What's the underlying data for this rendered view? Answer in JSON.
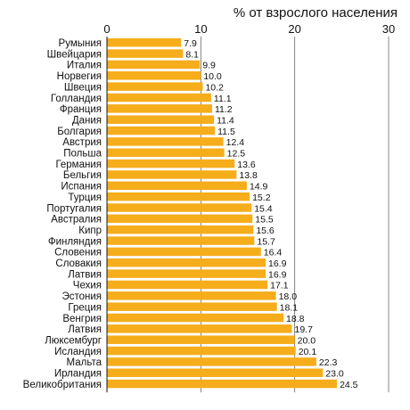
{
  "chart_data": {
    "type": "bar",
    "orientation": "horizontal",
    "title": "",
    "xlabel": "% от взрослого населения",
    "ylabel": "",
    "xlim": [
      0,
      30
    ],
    "xticks": [
      0,
      10,
      20,
      30
    ],
    "grid": true,
    "bar_color": "#f6ad1b",
    "categories": [
      "Румыния",
      "Швейцария",
      "Италия",
      "Норвегия",
      "Швеция",
      "Голландия",
      "Франция",
      "Дания",
      "Болгария",
      "Австрия",
      "Польша",
      "Германия",
      "Бельгия",
      "Испания",
      "Турция",
      "Португалия",
      "Австралия",
      "Кипр",
      "Финляндия",
      "Словения",
      "Словакия",
      "Латвия",
      "Чехия",
      "Эстония",
      "Греция",
      "Венгрия",
      "Латвия",
      "Люксембург",
      "Исландия",
      "Мальта",
      "Ирландия",
      "Великобритания"
    ],
    "values": [
      7.9,
      8.1,
      9.9,
      10.0,
      10.2,
      11.1,
      11.2,
      11.4,
      11.5,
      12.4,
      12.5,
      13.6,
      13.8,
      14.9,
      15.2,
      15.4,
      15.5,
      15.6,
      15.7,
      16.4,
      16.9,
      16.9,
      17.1,
      18.0,
      18.1,
      18.8,
      19.7,
      20.0,
      20.1,
      22.3,
      23.0,
      24.5
    ],
    "value_labels": [
      "7.9",
      "8.1",
      "9.9",
      "10.0",
      "10.2",
      "11.1",
      "11.2",
      "11.4",
      "11.5",
      "12.4",
      "12.5",
      "13.6",
      "13.8",
      "14.9",
      "15.2",
      "15.4",
      "15.5",
      "15.6",
      "15.7",
      "16.4",
      "16.9",
      "16.9",
      "17.1",
      "18.0",
      "18.1",
      "18.8",
      "19.7",
      "20.0",
      "20.1",
      "22.3",
      "23.0",
      "24.5"
    ]
  }
}
